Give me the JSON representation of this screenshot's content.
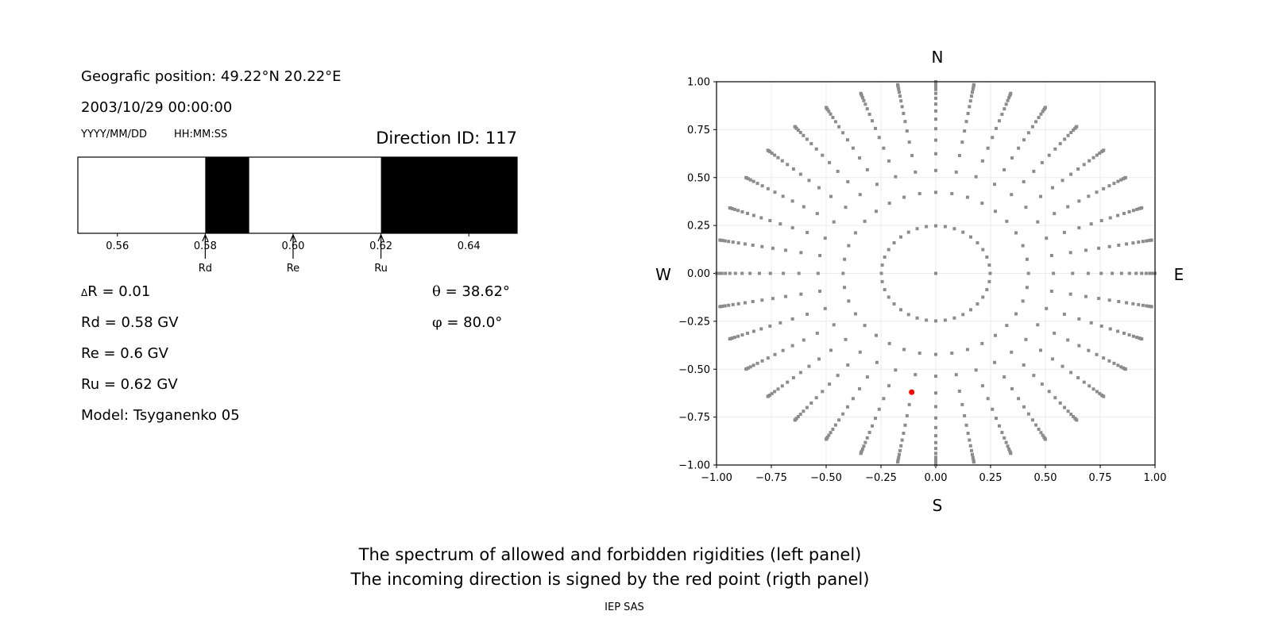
{
  "info": {
    "position": "Geografic position: 49.22°N 20.22°E",
    "datetime": "2003/10/29 00:00:00",
    "date_format": "YYYY/MM/DD",
    "time_format": "HH:MM:SS",
    "direction_id": "Direction ID: 117",
    "delta_r_symbol": "Δ",
    "delta_r": "R = 0.01",
    "rd": "Rd = 0.58 GV",
    "re": "Re = 0.6 GV",
    "ru": "Ru = 0.62 GV",
    "model": "Model: Tsyganenko 05",
    "theta_symbol": "θ",
    "theta": " = 38.62°",
    "phi_symbol": "φ",
    "phi": " = 80.0°"
  },
  "caption": {
    "line1": "The spectrum of allowed and forbidden rigidities (left panel)",
    "line2": "The incoming direction is signed by the red point (rigth panel)",
    "credit": "IEP SAS"
  },
  "chart_data": [
    {
      "type": "bar",
      "xlim": [
        0.551,
        0.651
      ],
      "xticks": [
        "0.56",
        "0.58",
        "0.60",
        "0.62",
        "0.64"
      ],
      "forbidden_intervals": [
        [
          0.58,
          0.59
        ],
        [
          0.62,
          0.651
        ]
      ],
      "allowed_color": "#ffffff",
      "forbidden_color": "#000000",
      "markers": [
        {
          "label": "Rd",
          "value": 0.58
        },
        {
          "label": "Re",
          "value": 0.6
        },
        {
          "label": "Ru",
          "value": 0.62
        }
      ]
    },
    {
      "type": "scatter",
      "xlim": [
        -1,
        1
      ],
      "ylim": [
        -1,
        1
      ],
      "xticks": [
        "−1.00",
        "−0.75",
        "−0.50",
        "−0.25",
        "0.00",
        "0.25",
        "0.50",
        "0.75",
        "1.00"
      ],
      "yticks": [
        "−1.00",
        "−0.75",
        "−0.50",
        "−0.25",
        "0.00",
        "0.25",
        "0.50",
        "0.75",
        "1.00"
      ],
      "grid": true,
      "compass": {
        "top": "N",
        "bottom": "S",
        "left": "W",
        "right": "E"
      },
      "grid_points": {
        "color": "#8c8c8c",
        "center": [
          0,
          0
        ],
        "ring_cos_zenith": [
          0.96875,
          0.90625,
          0.84375,
          0.78125,
          0.71875,
          0.65625,
          0.59375,
          0.53125,
          0.46875,
          0.40625,
          0.34375,
          0.28125,
          0.21875,
          0.15625,
          0.09375,
          0.03125
        ],
        "points_per_ring": 36
      },
      "highlight_point": {
        "x": -0.11,
        "y": -0.62,
        "color": "#ff0000"
      }
    }
  ]
}
